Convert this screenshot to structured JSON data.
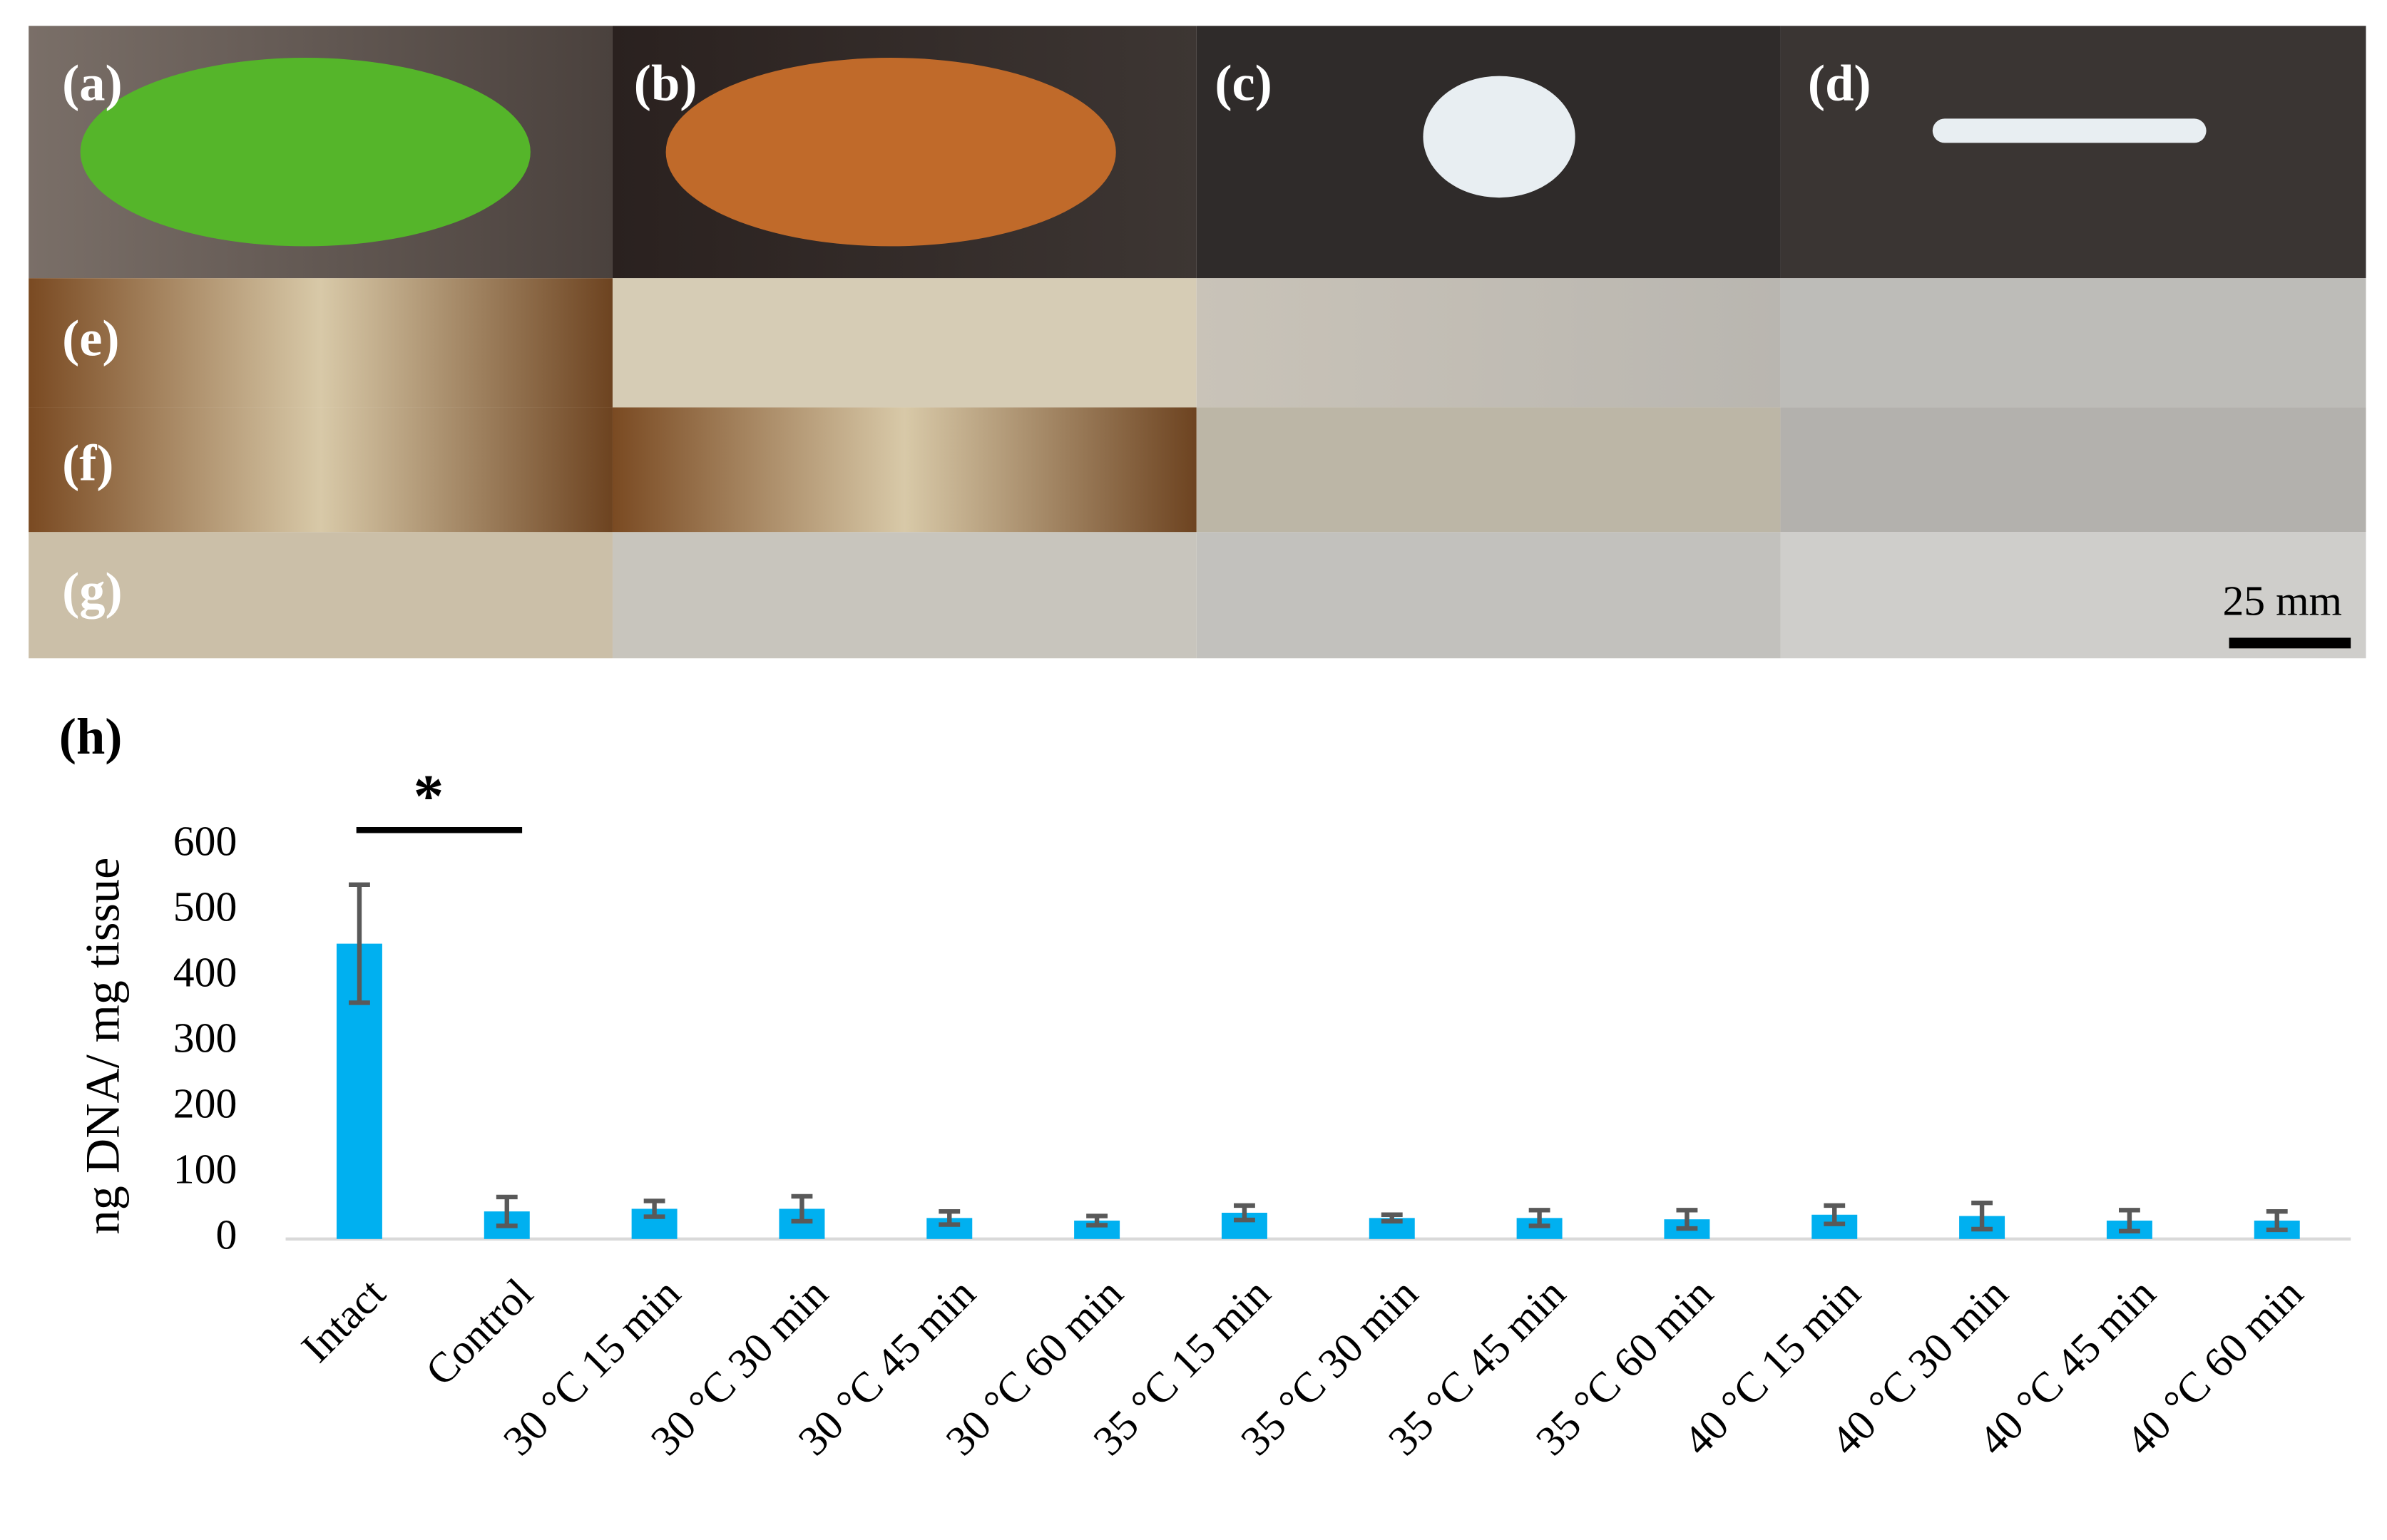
{
  "panels": {
    "labels": [
      "(a)",
      "(b)",
      "(c)",
      "(d)",
      "(e)",
      "(f)",
      "(g)"
    ],
    "scale_bar": "25 mm"
  },
  "chart_data": {
    "type": "bar",
    "panel_label": "(h)",
    "y_label": "ng DNA/ mg tissue",
    "categories": [
      "Intact",
      "Control",
      "30 °C 15 min",
      "30 °C 30 min",
      "30 °C 45 min",
      "30 °C 60 min",
      "35 °C 15 min",
      "35 °C 30 min",
      "35 °C 45 min",
      "35 °C 60 min",
      "40 °C 15 min",
      "40 °C 30 min",
      "40 °C 45 min",
      "40 °C 60 min"
    ],
    "values": [
      450,
      42,
      46,
      46,
      32,
      28,
      40,
      32,
      32,
      30,
      37,
      35,
      28,
      28
    ],
    "errors": [
      90,
      22,
      12,
      19,
      10,
      7,
      11,
      5,
      12,
      14,
      14,
      20,
      16,
      14
    ],
    "color": "#00b0f0",
    "error_color": "#595959",
    "ylim": [
      0,
      600
    ],
    "yticks": [
      0,
      100,
      200,
      300,
      400,
      500,
      600
    ],
    "significance_label": "*",
    "significance_between": [
      0,
      1
    ]
  }
}
